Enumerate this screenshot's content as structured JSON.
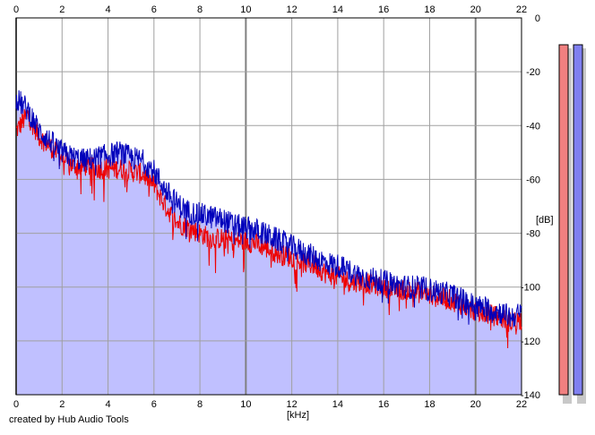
{
  "chart_data": {
    "type": "area",
    "xlabel": "[kHz]",
    "ylabel": "[dB]",
    "xlim": [
      0,
      22
    ],
    "ylim": [
      -140,
      0
    ],
    "x_ticks": [
      "0",
      "2",
      "4",
      "6",
      "8",
      "10",
      "12",
      "14",
      "16",
      "18",
      "20",
      "22"
    ],
    "y_ticks": [
      "0",
      "-20",
      "-40",
      "-60",
      "-80",
      "-100",
      "-120",
      "-140"
    ],
    "grid": true,
    "series": [
      {
        "color": "#ee0000",
        "x": [
          0,
          0.5,
          1,
          1.5,
          2,
          2.5,
          3,
          3.5,
          4,
          4.5,
          5,
          5.5,
          6,
          6.5,
          7,
          7.5,
          8,
          8.5,
          9,
          9.5,
          10,
          10.5,
          11,
          11.5,
          12,
          12.5,
          13,
          13.5,
          14,
          14.5,
          15,
          15.5,
          16,
          16.5,
          17,
          17.5,
          18,
          18.5,
          19,
          19.5,
          20,
          20.5,
          21,
          21.5,
          22
        ],
        "values": [
          -42,
          -36,
          -44,
          -48,
          -52,
          -55,
          -55,
          -56,
          -56,
          -56,
          -57,
          -58,
          -62,
          -70,
          -76,
          -78,
          -80,
          -82,
          -82,
          -83,
          -83,
          -84,
          -86,
          -88,
          -89,
          -91,
          -92,
          -95,
          -96,
          -98,
          -98,
          -99,
          -100,
          -101,
          -101,
          -102,
          -103,
          -104,
          -105,
          -107,
          -109,
          -110,
          -111,
          -113,
          -112
        ]
      },
      {
        "color": "#0000bb",
        "x": [
          0,
          0.5,
          1,
          1.5,
          2,
          2.5,
          3,
          3.5,
          4,
          4.5,
          5,
          5.5,
          6,
          6.5,
          7,
          7.5,
          8,
          8.5,
          9,
          9.5,
          10,
          10.5,
          11,
          11.5,
          12,
          12.5,
          13,
          13.5,
          14,
          14.5,
          15,
          15.5,
          16,
          16.5,
          17,
          17.5,
          18,
          18.5,
          19,
          19.5,
          20,
          20.5,
          21,
          21.5,
          22
        ],
        "values": [
          -30,
          -34,
          -42,
          -46,
          -50,
          -52,
          -53,
          -52,
          -51,
          -50,
          -52,
          -53,
          -57,
          -64,
          -69,
          -72,
          -73,
          -74,
          -75,
          -77,
          -78,
          -79,
          -81,
          -83,
          -85,
          -87,
          -89,
          -91,
          -92,
          -94,
          -96,
          -97,
          -98,
          -99,
          -100,
          -100,
          -101,
          -102,
          -103,
          -105,
          -107,
          -108,
          -109,
          -111,
          -110
        ]
      }
    ],
    "fill_color": "#c0c0ff",
    "meters": [
      {
        "color": "#f08080",
        "level": 1.0
      },
      {
        "color": "#8080f0",
        "level": 1.0
      }
    ]
  },
  "footer": "created by Hub Audio Tools"
}
